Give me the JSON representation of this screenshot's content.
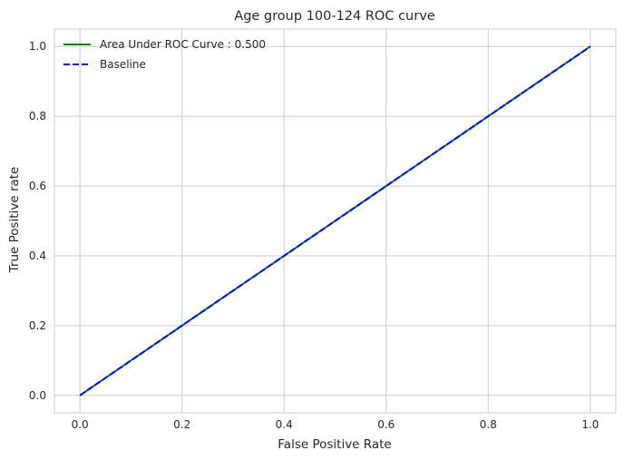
{
  "chart_data": {
    "type": "line",
    "title": "Age group 100-124 ROC curve",
    "xlabel": "False Positive Rate",
    "ylabel": "True Positive rate",
    "xlim": [
      -0.05,
      1.05
    ],
    "ylim": [
      -0.05,
      1.05
    ],
    "xticks": [
      0.0,
      0.2,
      0.4,
      0.6,
      0.8,
      1.0
    ],
    "yticks": [
      0.0,
      0.2,
      0.4,
      0.6,
      0.8,
      1.0
    ],
    "xtick_labels": [
      "0.0",
      "0.2",
      "0.4",
      "0.6",
      "0.8",
      "1.0"
    ],
    "ytick_labels": [
      "0.0",
      "0.2",
      "0.4",
      "0.6",
      "0.8",
      "1.0"
    ],
    "grid": true,
    "legend_position": "top-left",
    "series": [
      {
        "name": "Area Under ROC Curve : 0.500",
        "color": "#008000",
        "style": "solid",
        "x": [
          0.0,
          1.0
        ],
        "y": [
          0.0,
          1.0
        ]
      },
      {
        "name": "Baseline",
        "color": "#0000ff",
        "style": "dashed",
        "x": [
          0.0,
          1.0
        ],
        "y": [
          0.0,
          1.0
        ]
      }
    ]
  }
}
